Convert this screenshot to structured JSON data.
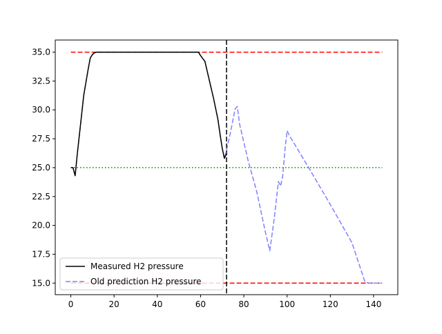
{
  "chart_data": {
    "type": "line",
    "xlim": [
      -7.2,
      151.2
    ],
    "ylim": [
      14.0,
      36.05
    ],
    "x_ticks": [
      0,
      20,
      40,
      60,
      80,
      100,
      120,
      140
    ],
    "x_tick_labels": [
      "0",
      "20",
      "40",
      "60",
      "80",
      "100",
      "120",
      "140"
    ],
    "y_ticks": [
      15.0,
      17.5,
      20.0,
      22.5,
      25.0,
      27.5,
      30.0,
      32.5,
      35.0
    ],
    "y_tick_labels": [
      "15.0",
      "17.5",
      "20.0",
      "22.5",
      "25.0",
      "27.5",
      "30.0",
      "32.5",
      "35.0"
    ],
    "grid": false,
    "legend_position": "lower-left",
    "series": [
      {
        "name": "Measured H2 pressure",
        "color": "#000000",
        "style": "solid",
        "x": [
          0,
          1,
          2,
          3,
          4,
          5,
          6,
          7,
          8,
          9,
          10,
          11,
          12,
          14,
          16,
          20,
          25,
          30,
          40,
          48,
          50,
          55,
          58,
          59,
          60,
          62,
          64,
          66,
          68,
          69,
          70,
          71,
          72
        ],
        "y": [
          25.0,
          25.0,
          24.3,
          26.2,
          27.9,
          29.6,
          31.3,
          32.4,
          33.5,
          34.5,
          34.8,
          34.95,
          35.0,
          35.0,
          35.0,
          35.0,
          35.0,
          35.0,
          35.0,
          35.0,
          35.0,
          35.0,
          35.0,
          35.0,
          34.7,
          34.2,
          32.6,
          31.0,
          29.2,
          27.9,
          26.7,
          25.8,
          26.2
        ]
      },
      {
        "name": "Old prediction H2 pressure",
        "color": "#7f7fff",
        "style": "dashed",
        "x": [
          0,
          1,
          2,
          3,
          4,
          5,
          6,
          7,
          8,
          9,
          10,
          11,
          12,
          14,
          16,
          20,
          25,
          30,
          40,
          48,
          50,
          55,
          58,
          59,
          60,
          62,
          64,
          66,
          68,
          69,
          70,
          71,
          72,
          74,
          76,
          77,
          78,
          82,
          86,
          90,
          92,
          94,
          96,
          97,
          98,
          99,
          100,
          101,
          110,
          120,
          130,
          136,
          138,
          140,
          144
        ],
        "y": [
          25.0,
          25.0,
          24.3,
          26.2,
          27.9,
          29.6,
          31.3,
          32.4,
          33.5,
          34.5,
          34.8,
          34.95,
          35.0,
          35.0,
          35.0,
          35.0,
          35.0,
          35.0,
          35.0,
          35.0,
          35.0,
          35.0,
          35.0,
          35.0,
          34.7,
          34.2,
          32.6,
          31.0,
          29.2,
          27.9,
          26.7,
          25.8,
          26.5,
          28.2,
          30.1,
          30.3,
          28.8,
          25.6,
          22.9,
          19.4,
          17.8,
          20.5,
          23.8,
          23.4,
          24.3,
          26.5,
          28.2,
          27.8,
          25.0,
          21.8,
          18.5,
          15.1,
          15.0,
          15.0,
          15.0
        ]
      }
    ],
    "reference_lines": [
      {
        "kind": "horizontal",
        "y": 35.0,
        "x_from": 0,
        "x_to": 144,
        "color": "#ff0000",
        "style": "dashed"
      },
      {
        "kind": "horizontal",
        "y": 15.0,
        "x_from": 0,
        "x_to": 144,
        "color": "#ff0000",
        "style": "dashed"
      },
      {
        "kind": "horizontal",
        "y": 25.0,
        "x_from": 0,
        "x_to": 144,
        "color": "#008000",
        "style": "dotted"
      },
      {
        "kind": "vertical",
        "x": 72,
        "color": "#000000",
        "style": "dashed"
      }
    ]
  }
}
